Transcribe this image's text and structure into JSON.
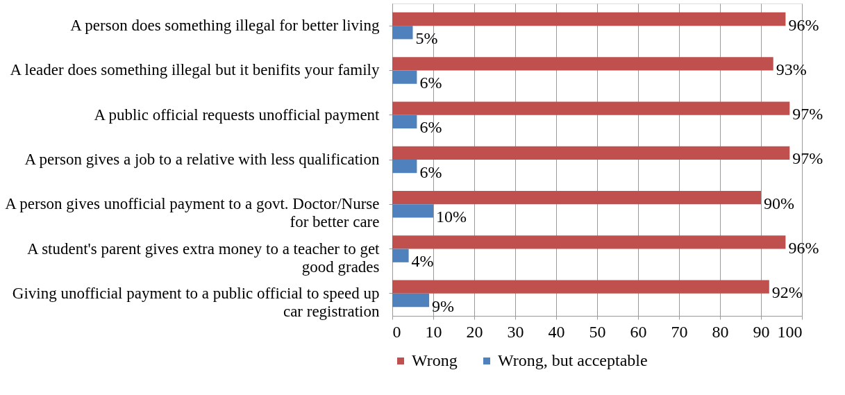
{
  "chart_data": {
    "type": "bar",
    "orientation": "horizontal",
    "categories": [
      "A person does something illegal for better living",
      "A leader does something illegal but it benifits your family",
      "A public official requests unofficial payment",
      "A person gives a job to a relative with less qualification",
      "A person gives unofficial payment to a govt. Doctor/Nurse for better care",
      "A student's parent gives extra money to a teacher to get good grades",
      "Giving unofficial payment to a public official to speed up car registration"
    ],
    "series": [
      {
        "name": "Wrong",
        "color": "#c0504d",
        "values": [
          96,
          93,
          97,
          97,
          90,
          96,
          92
        ],
        "value_labels": [
          "96%",
          "93%",
          "97%",
          "97%",
          "90%",
          "96%",
          "92%"
        ]
      },
      {
        "name": "Wrong, but acceptable",
        "color": "#4f81bd",
        "values": [
          5,
          6,
          6,
          6,
          10,
          4,
          9
        ],
        "value_labels": [
          "5%",
          "6%",
          "6%",
          "6%",
          "10%",
          "4%",
          "9%"
        ]
      }
    ],
    "xlim": [
      0,
      100
    ],
    "xticks": [
      0,
      10,
      20,
      30,
      40,
      50,
      60,
      70,
      80,
      90,
      100
    ],
    "grid": "x",
    "legend": "bottom"
  }
}
